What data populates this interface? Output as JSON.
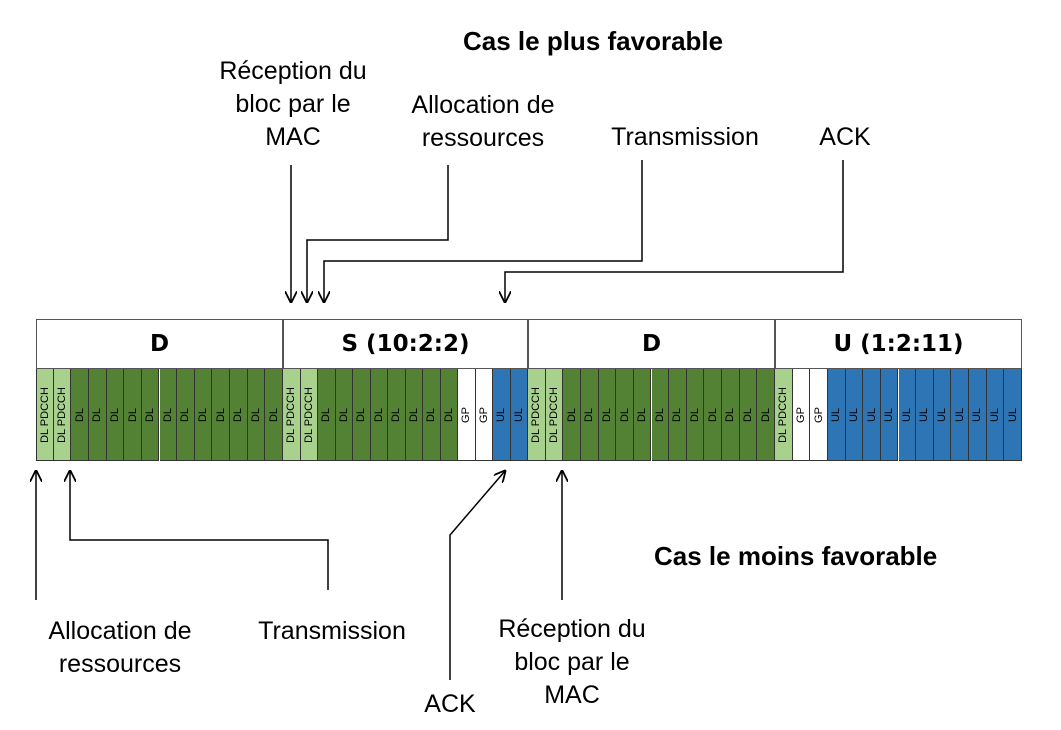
{
  "best_case": {
    "title": "Cas le plus favorable",
    "labels": {
      "reception": [
        "Réception du",
        "bloc par le",
        "MAC"
      ],
      "allocation": [
        "Allocation de",
        "ressources"
      ],
      "transmission": [
        "Transmission"
      ],
      "ack": [
        "ACK"
      ]
    }
  },
  "worst_case": {
    "title": "Cas le moins favorable",
    "labels": {
      "allocation": [
        "Allocation de",
        "ressources"
      ],
      "transmission": [
        "Transmission"
      ],
      "ack": [
        "ACK"
      ],
      "reception": [
        "Réception du",
        "bloc par le",
        "MAC"
      ]
    }
  },
  "frames": [
    {
      "label": "D",
      "color": "#92d050",
      "slots": [
        "DL PDCCH",
        "DL PDCCH",
        "DL",
        "DL",
        "DL",
        "DL",
        "DL",
        "DL",
        "DL",
        "DL",
        "DL",
        "DL",
        "DL",
        "DL"
      ]
    },
    {
      "label": "S (10:2:2)",
      "color": "#ffd966",
      "slots": [
        "DL PDCCH",
        "DL PDCCH",
        "DL",
        "DL",
        "DL",
        "DL",
        "DL",
        "DL",
        "DL",
        "DL",
        "GP",
        "GP",
        "UL",
        "UL"
      ]
    },
    {
      "label": "D",
      "color": "#92d050",
      "slots": [
        "DL PDCCH",
        "DL PDCCH",
        "DL",
        "DL",
        "DL",
        "DL",
        "DL",
        "DL",
        "DL",
        "DL",
        "DL",
        "DL",
        "DL",
        "DL"
      ]
    },
    {
      "label": "U  (1:2:11)",
      "color": "#00b0f0",
      "slots": [
        "DL PDCCH",
        "GP",
        "GP",
        "UL",
        "UL",
        "UL",
        "UL",
        "UL",
        "UL",
        "UL",
        "UL",
        "UL",
        "UL",
        "UL"
      ]
    }
  ],
  "slot_colors": {
    "DL PDCCH": "#a9d18e",
    "DL": "#548235",
    "GP": "#ffffff",
    "UL": "#2e75b6"
  }
}
